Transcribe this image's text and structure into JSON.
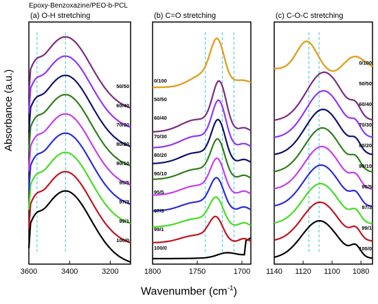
{
  "top_title": "Epoxy-Benzoxazine/PEO-b-PCL",
  "xlabel": "Wavenumber (cm",
  "xlabel_sup": "-1",
  "xlabel_close": ")",
  "ylabel": "Absorbance (a.u.)",
  "colors": {
    "100/0": "#000000",
    "99/1": "#c1121f",
    "97/3": "#44dd22",
    "95/5": "#2a2adb",
    "90/10": "#c33cf0",
    "80/20": "#2e7d18",
    "70/30": "#10106a",
    "60/40": "#8f33ff",
    "50/50": "#7a2a7f",
    "0/100": "#e0a020",
    "guide": "#33c3e8"
  },
  "chart_data": [
    {
      "type": "line",
      "title": "(a) O-H stretching",
      "xlim": [
        3600,
        3100
      ],
      "xticks": [
        3600,
        3400,
        3200
      ],
      "guides": [
        3560,
        3420
      ],
      "series": [
        {
          "name": "100/0",
          "peak": 3410,
          "height": 0.0
        },
        {
          "name": "99/1",
          "peak": 3412,
          "height": 0.0
        },
        {
          "name": "97/3",
          "peak": 3415,
          "height": 0.0
        },
        {
          "name": "95/5",
          "peak": 3418,
          "height": 0.0
        },
        {
          "name": "90/10",
          "peak": 3420,
          "height": 0.0
        },
        {
          "name": "80/20",
          "peak": 3425,
          "height": 0.0
        },
        {
          "name": "70/30",
          "peak": 3428,
          "height": 0.0
        },
        {
          "name": "60/40",
          "peak": 3430,
          "height": 0.0
        },
        {
          "name": "50/50",
          "peak": 3432,
          "height": 0.0
        }
      ],
      "labels": [
        "50/50",
        "60/40",
        "70/30",
        "80/20",
        "90/10",
        "95/5",
        "97/3",
        "99/1",
        "100/0"
      ]
    },
    {
      "type": "line",
      "title": "(b) C=O stretching",
      "xlim": [
        1800,
        1690
      ],
      "xticks": [
        1800,
        1750,
        1700
      ],
      "guides": [
        1741,
        1722,
        1709
      ],
      "series": [
        {
          "name": "100/0"
        },
        {
          "name": "99/1"
        },
        {
          "name": "97/3"
        },
        {
          "name": "95/5"
        },
        {
          "name": "90/10"
        },
        {
          "name": "80/20"
        },
        {
          "name": "70/30"
        },
        {
          "name": "60/40"
        },
        {
          "name": "50/50"
        },
        {
          "name": "0/100"
        }
      ],
      "labels": [
        "0/100",
        "50/50",
        "60/40",
        "70/30",
        "80/20",
        "90/10",
        "95/5",
        "97/3",
        "99/1",
        "100/0"
      ]
    },
    {
      "type": "line",
      "title": "(c) C-O-C stretching",
      "xlim": [
        1140,
        1072
      ],
      "xticks": [
        1140,
        1120,
        1100,
        1080
      ],
      "guides": [
        1116,
        1109
      ],
      "series": [
        {
          "name": "100/0"
        },
        {
          "name": "99/1"
        },
        {
          "name": "97/3"
        },
        {
          "name": "95/5"
        },
        {
          "name": "90/10"
        },
        {
          "name": "80/20"
        },
        {
          "name": "70/30"
        },
        {
          "name": "60/40"
        },
        {
          "name": "50/50"
        },
        {
          "name": "0/100"
        }
      ],
      "labels": [
        "0/100",
        "50/50",
        "60/40",
        "70/30",
        "80/20",
        "90/10",
        "95/5",
        "97/3",
        "99/1",
        "100/0"
      ]
    }
  ]
}
